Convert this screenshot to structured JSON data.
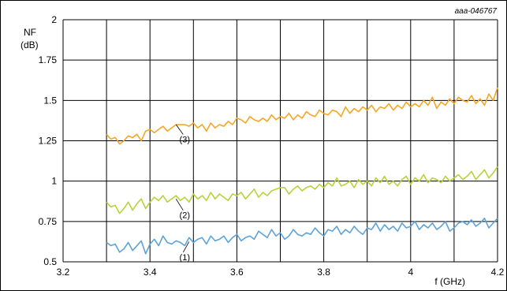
{
  "figure_id": "aaa-046767",
  "colors": {
    "series_1": "#5ba3d9",
    "series_2": "#b5d33a",
    "series_3": "#f5a623",
    "grid": "#000000"
  },
  "chart_data": {
    "type": "line",
    "title": "",
    "xlabel": "f (GHz)",
    "ylabel_line1": "NF",
    "ylabel_line2": "(dB)",
    "xlim": [
      3.2,
      4.2
    ],
    "ylim": [
      0.5,
      2
    ],
    "x_ticks": [
      3.2,
      3.4,
      3.6,
      3.8,
      4,
      4.2
    ],
    "x_tick_labels": [
      "3.2",
      "3.4",
      "3.6",
      "3.8",
      "4",
      "4.2"
    ],
    "x_grid": [
      3.2,
      3.3,
      3.4,
      3.5,
      3.6,
      3.7,
      3.8,
      3.9,
      4.0,
      4.1,
      4.2
    ],
    "y_ticks": [
      0.5,
      0.75,
      1,
      1.25,
      1.5,
      1.75,
      2
    ],
    "y_tick_labels": [
      "0.5",
      "0.75",
      "1",
      "1.25",
      "1.5",
      "1.75",
      "2"
    ],
    "grid": true,
    "legend": "inline callout labels",
    "series": [
      {
        "name": "(1)",
        "color": "#5ba3d9",
        "label_anchor": [
          3.49,
          0.625
        ],
        "label_pos": [
          3.48,
          0.52
        ],
        "x": [
          3.3,
          3.31,
          3.32,
          3.33,
          3.34,
          3.35,
          3.36,
          3.37,
          3.38,
          3.39,
          3.4,
          3.41,
          3.42,
          3.43,
          3.44,
          3.45,
          3.46,
          3.47,
          3.48,
          3.49,
          3.5,
          3.51,
          3.52,
          3.53,
          3.54,
          3.55,
          3.56,
          3.57,
          3.58,
          3.59,
          3.6,
          3.61,
          3.62,
          3.63,
          3.64,
          3.65,
          3.66,
          3.67,
          3.68,
          3.69,
          3.7,
          3.71,
          3.72,
          3.73,
          3.74,
          3.75,
          3.76,
          3.77,
          3.78,
          3.79,
          3.8,
          3.81,
          3.82,
          3.83,
          3.84,
          3.85,
          3.86,
          3.87,
          3.88,
          3.89,
          3.9,
          3.91,
          3.92,
          3.93,
          3.94,
          3.95,
          3.96,
          3.97,
          3.98,
          3.99,
          4.0,
          4.01,
          4.02,
          4.03,
          4.04,
          4.05,
          4.06,
          4.07,
          4.08,
          4.09,
          4.1,
          4.11,
          4.12,
          4.13,
          4.14,
          4.15,
          4.16,
          4.17,
          4.18,
          4.19,
          4.2
        ],
        "values": [
          0.62,
          0.6,
          0.61,
          0.56,
          0.58,
          0.62,
          0.57,
          0.6,
          0.63,
          0.55,
          0.61,
          0.64,
          0.6,
          0.66,
          0.62,
          0.61,
          0.63,
          0.62,
          0.6,
          0.65,
          0.62,
          0.64,
          0.65,
          0.61,
          0.66,
          0.63,
          0.64,
          0.66,
          0.62,
          0.65,
          0.67,
          0.63,
          0.65,
          0.66,
          0.64,
          0.69,
          0.67,
          0.65,
          0.7,
          0.66,
          0.68,
          0.64,
          0.66,
          0.7,
          0.67,
          0.66,
          0.68,
          0.67,
          0.71,
          0.68,
          0.66,
          0.7,
          0.69,
          0.72,
          0.67,
          0.7,
          0.68,
          0.72,
          0.69,
          0.67,
          0.71,
          0.7,
          0.74,
          0.69,
          0.73,
          0.7,
          0.72,
          0.69,
          0.74,
          0.71,
          0.72,
          0.75,
          0.7,
          0.73,
          0.71,
          0.74,
          0.7,
          0.72,
          0.75,
          0.69,
          0.71,
          0.74,
          0.75,
          0.73,
          0.76,
          0.72,
          0.74,
          0.77,
          0.71,
          0.74,
          0.77
        ]
      },
      {
        "name": "(2)",
        "color": "#b5d33a",
        "label_anchor": [
          3.46,
          0.89
        ],
        "label_pos": [
          3.48,
          0.78
        ],
        "x": [
          3.3,
          3.31,
          3.32,
          3.33,
          3.34,
          3.35,
          3.36,
          3.37,
          3.38,
          3.39,
          3.4,
          3.41,
          3.42,
          3.43,
          3.44,
          3.45,
          3.46,
          3.47,
          3.48,
          3.49,
          3.5,
          3.51,
          3.52,
          3.53,
          3.54,
          3.55,
          3.56,
          3.57,
          3.58,
          3.59,
          3.6,
          3.61,
          3.62,
          3.63,
          3.64,
          3.65,
          3.66,
          3.67,
          3.68,
          3.69,
          3.7,
          3.71,
          3.72,
          3.73,
          3.74,
          3.75,
          3.76,
          3.77,
          3.78,
          3.79,
          3.8,
          3.81,
          3.82,
          3.83,
          3.84,
          3.85,
          3.86,
          3.87,
          3.88,
          3.89,
          3.9,
          3.91,
          3.92,
          3.93,
          3.94,
          3.95,
          3.96,
          3.97,
          3.98,
          3.99,
          4.0,
          4.01,
          4.02,
          4.03,
          4.04,
          4.05,
          4.06,
          4.07,
          4.08,
          4.09,
          4.1,
          4.11,
          4.12,
          4.13,
          4.14,
          4.15,
          4.16,
          4.17,
          4.18,
          4.19,
          4.2
        ],
        "values": [
          0.87,
          0.84,
          0.85,
          0.8,
          0.83,
          0.87,
          0.82,
          0.86,
          0.89,
          0.83,
          0.87,
          0.9,
          0.88,
          0.91,
          0.87,
          0.89,
          0.91,
          0.88,
          0.9,
          0.87,
          0.92,
          0.89,
          0.91,
          0.88,
          0.93,
          0.89,
          0.92,
          0.9,
          0.88,
          0.92,
          0.91,
          0.93,
          0.89,
          0.92,
          0.95,
          0.9,
          0.93,
          0.91,
          0.94,
          0.95,
          0.96,
          0.96,
          0.92,
          0.95,
          0.97,
          0.94,
          0.96,
          0.97,
          0.95,
          0.98,
          0.96,
          0.99,
          0.97,
          1.02,
          0.97,
          0.98,
          1.0,
          0.96,
          1.01,
          0.98,
          1.0,
          0.97,
          1.02,
          0.99,
          1.03,
          0.98,
          1.0,
          0.97,
          1.01,
          1.03,
          0.98,
          1.02,
          1.0,
          1.04,
          0.99,
          1.02,
          1.01,
          0.99,
          1.03,
          1.0,
          1.02,
          1.04,
          1.01,
          1.03,
          1.06,
          1.01,
          1.04,
          1.07,
          1.02,
          1.05,
          1.09
        ]
      },
      {
        "name": "(3)",
        "color": "#f5a623",
        "label_anchor": [
          3.46,
          1.35
        ],
        "label_pos": [
          3.48,
          1.25
        ],
        "x": [
          3.3,
          3.31,
          3.32,
          3.33,
          3.34,
          3.35,
          3.36,
          3.37,
          3.38,
          3.39,
          3.4,
          3.41,
          3.42,
          3.43,
          3.44,
          3.45,
          3.46,
          3.47,
          3.48,
          3.49,
          3.5,
          3.51,
          3.52,
          3.53,
          3.54,
          3.55,
          3.56,
          3.57,
          3.58,
          3.59,
          3.6,
          3.61,
          3.62,
          3.63,
          3.64,
          3.65,
          3.66,
          3.67,
          3.68,
          3.69,
          3.7,
          3.71,
          3.72,
          3.73,
          3.74,
          3.75,
          3.76,
          3.77,
          3.78,
          3.79,
          3.8,
          3.81,
          3.82,
          3.83,
          3.84,
          3.85,
          3.86,
          3.87,
          3.88,
          3.89,
          3.9,
          3.91,
          3.92,
          3.93,
          3.94,
          3.95,
          3.96,
          3.97,
          3.98,
          3.99,
          4.0,
          4.01,
          4.02,
          4.03,
          4.04,
          4.05,
          4.06,
          4.07,
          4.08,
          4.09,
          4.1,
          4.11,
          4.12,
          4.13,
          4.14,
          4.15,
          4.16,
          4.17,
          4.18,
          4.19,
          4.2
        ],
        "values": [
          1.29,
          1.26,
          1.27,
          1.23,
          1.25,
          1.28,
          1.27,
          1.29,
          1.25,
          1.31,
          1.32,
          1.3,
          1.32,
          1.34,
          1.31,
          1.33,
          1.35,
          1.35,
          1.35,
          1.34,
          1.36,
          1.33,
          1.35,
          1.31,
          1.36,
          1.33,
          1.35,
          1.34,
          1.37,
          1.35,
          1.39,
          1.38,
          1.36,
          1.4,
          1.38,
          1.37,
          1.39,
          1.37,
          1.41,
          1.38,
          1.4,
          1.39,
          1.42,
          1.38,
          1.41,
          1.39,
          1.43,
          1.41,
          1.4,
          1.44,
          1.42,
          1.41,
          1.44,
          1.43,
          1.4,
          1.46,
          1.42,
          1.45,
          1.43,
          1.46,
          1.44,
          1.47,
          1.43,
          1.46,
          1.45,
          1.48,
          1.44,
          1.47,
          1.45,
          1.49,
          1.46,
          1.48,
          1.46,
          1.5,
          1.47,
          1.52,
          1.45,
          1.49,
          1.47,
          1.51,
          1.48,
          1.52,
          1.5,
          1.49,
          1.53,
          1.48,
          1.51,
          1.47,
          1.54,
          1.5,
          1.58
        ]
      }
    ]
  }
}
